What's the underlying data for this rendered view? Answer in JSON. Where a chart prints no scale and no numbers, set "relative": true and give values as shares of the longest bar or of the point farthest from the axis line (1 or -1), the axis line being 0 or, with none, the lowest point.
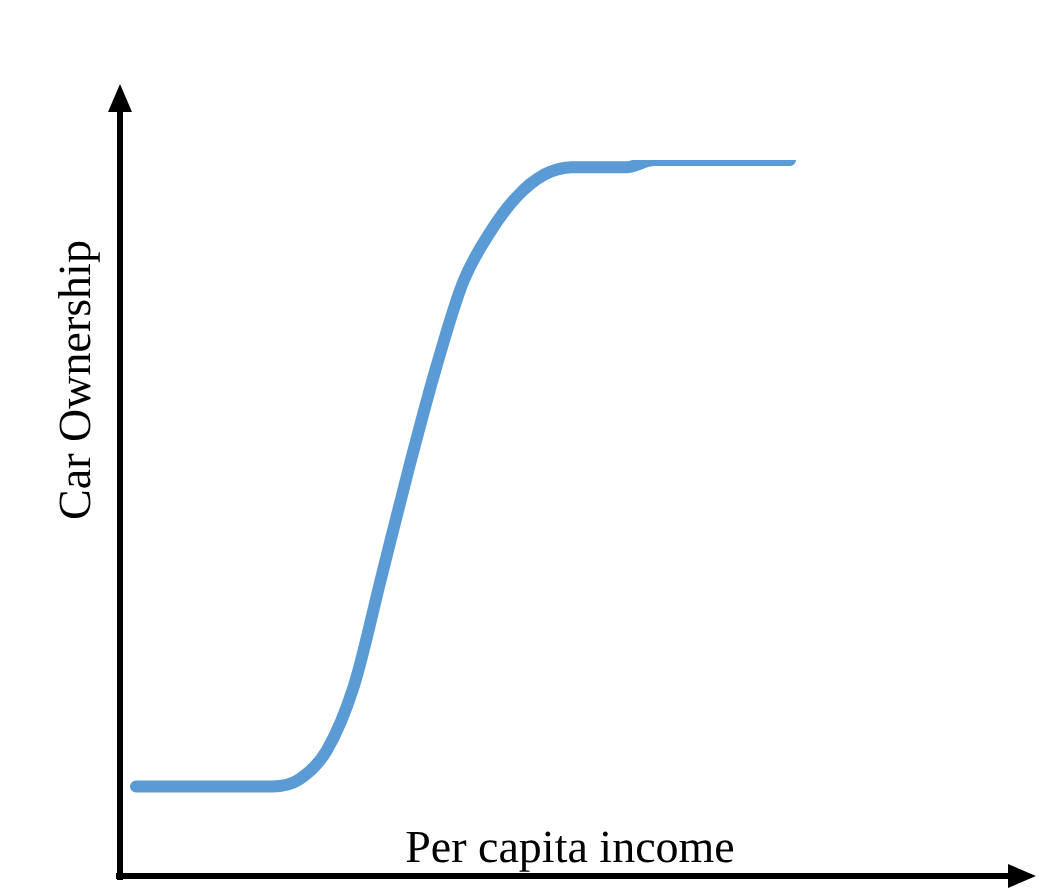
{
  "chart_data": {
    "type": "line",
    "xlabel": "Per capita income",
    "ylabel": "Car Ownership",
    "relative": true,
    "categories": [
      null,
      null,
      null,
      null,
      null,
      null,
      null,
      null,
      null,
      null,
      null,
      null,
      null,
      null,
      null,
      null,
      null,
      null,
      null,
      null,
      null,
      null,
      null,
      null,
      null
    ],
    "series": [
      {
        "color": "#5b9bd5",
        "values": [
          0.13,
          0.13,
          0.13,
          0.13,
          0.13,
          0.13,
          0.14,
          0.18,
          0.27,
          0.42,
          0.57,
          0.71,
          0.83,
          0.9,
          0.95,
          0.98,
          0.99,
          0.99,
          0.99,
          1,
          1,
          1,
          1,
          1,
          1
        ]
      }
    ],
    "grid": false,
    "legend": false,
    "marker": "none",
    "line_style": "solid"
  }
}
